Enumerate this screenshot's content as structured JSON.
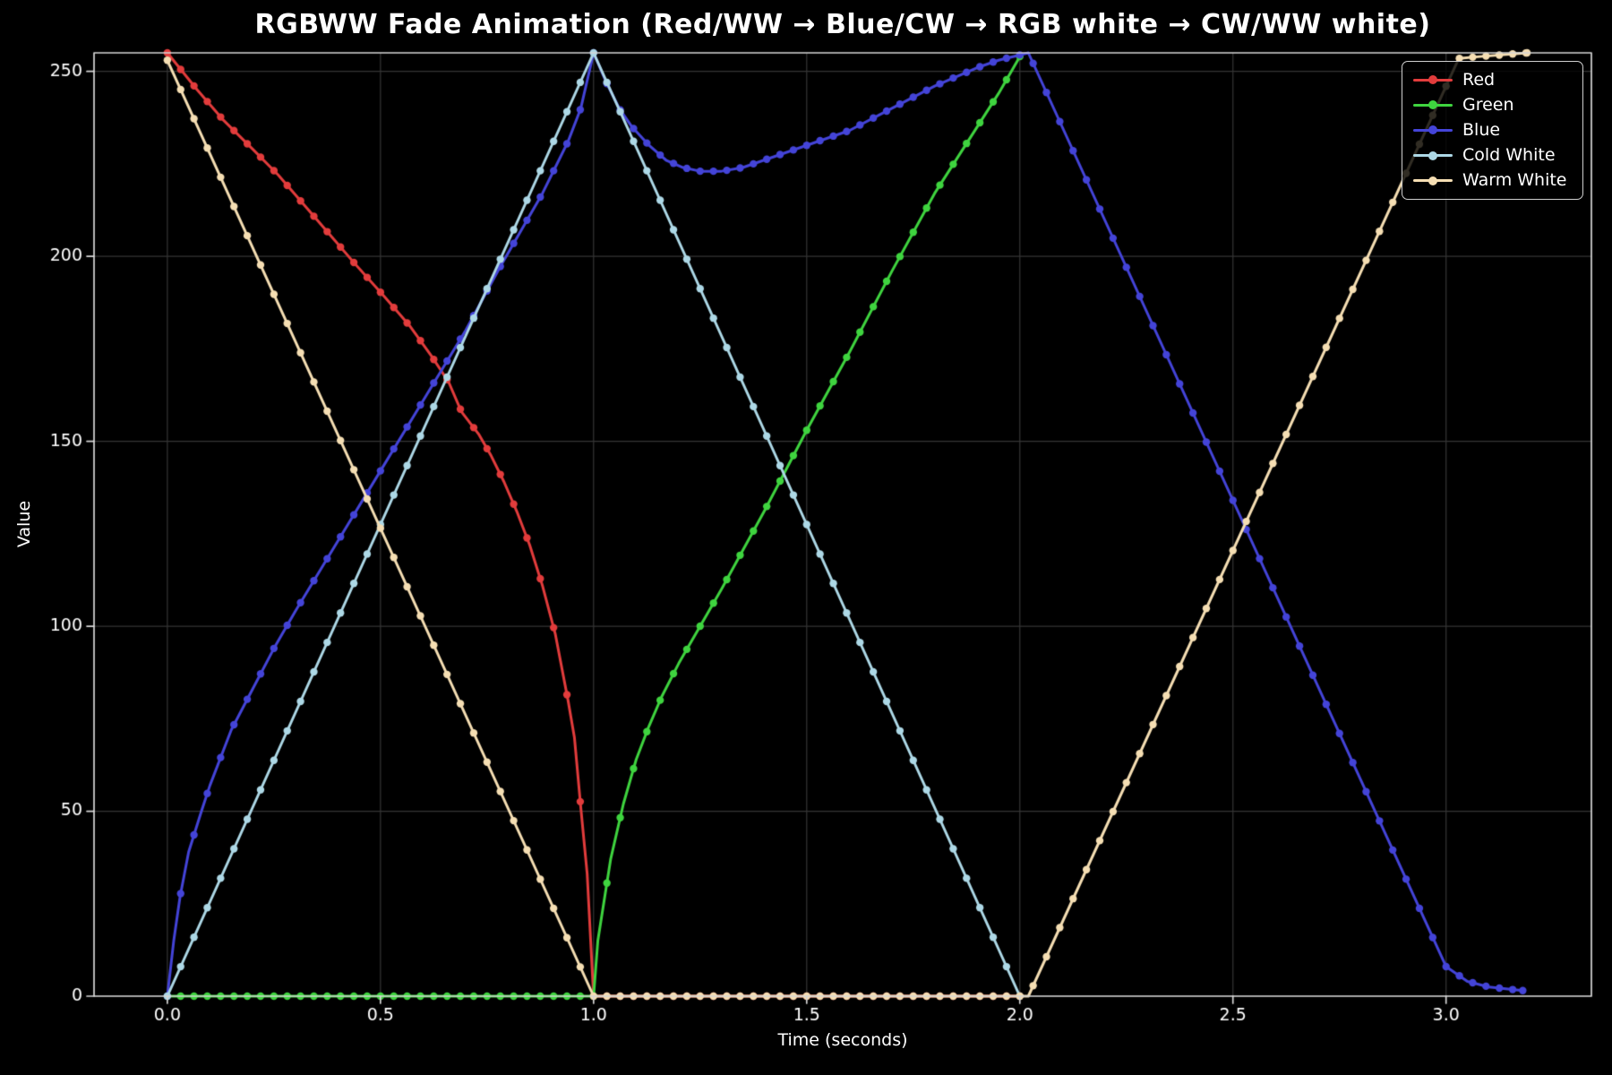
{
  "chart_data": {
    "type": "line",
    "title": "RGBWW Fade Animation (Red/WW → Blue/CW → RGB white → CW/WW white)",
    "xlabel": "Time (seconds)",
    "ylabel": "Value",
    "xlim": [
      -0.172,
      3.341
    ],
    "ylim": [
      0,
      255
    ],
    "xtick_values": [
      0.0,
      0.5,
      1.0,
      1.5,
      2.0,
      2.5,
      3.0
    ],
    "xtick_labels": [
      "0.0",
      "0.5",
      "1.0",
      "1.5",
      "2.0",
      "2.5",
      "3.0"
    ],
    "ytick_values": [
      0,
      50,
      100,
      150,
      200,
      250
    ],
    "ytick_labels": [
      "0",
      "50",
      "100",
      "150",
      "200",
      "250"
    ],
    "grid": true,
    "marker_interval": 0.03125,
    "legend": {
      "position": "upper-right"
    },
    "style": {
      "background": "#000000",
      "grid_color": "#353535",
      "spine_color": "#d6d6d6",
      "text_color": "#ffffff",
      "legend_bg": "rgba(0,0,0,0.8)",
      "legend_border": "#cfcfcf"
    },
    "series": [
      {
        "name": "Red",
        "color": "#e23c3c",
        "keypoints": [
          [
            0,
            255
          ],
          [
            0.07,
            245
          ],
          [
            0.13,
            237
          ],
          [
            0.2,
            229
          ],
          [
            0.26,
            222
          ],
          [
            0.32,
            214
          ],
          [
            0.38,
            206
          ],
          [
            0.44,
            198
          ],
          [
            0.51,
            189
          ],
          [
            0.57,
            181
          ],
          [
            0.62,
            173
          ],
          [
            0.66,
            166
          ],
          [
            0.69,
            158
          ],
          [
            0.73,
            152
          ],
          [
            0.76,
            146
          ],
          [
            0.79,
            139
          ],
          [
            0.82,
            131
          ],
          [
            0.85,
            122
          ],
          [
            0.88,
            111
          ],
          [
            0.91,
            98
          ],
          [
            0.94,
            80
          ],
          [
            0.955,
            70
          ],
          [
            0.97,
            51
          ],
          [
            0.985,
            33
          ],
          [
            1.0,
            0
          ],
          [
            2.0,
            0
          ]
        ]
      },
      {
        "name": "Green",
        "color": "#3fd43f",
        "keypoints": [
          [
            0,
            0
          ],
          [
            1.0,
            0
          ],
          [
            1.01,
            15
          ],
          [
            1.04,
            37
          ],
          [
            1.07,
            52
          ],
          [
            1.1,
            64
          ],
          [
            1.13,
            73
          ],
          [
            1.16,
            81
          ],
          [
            1.2,
            90
          ],
          [
            1.25,
            100
          ],
          [
            1.3,
            110
          ],
          [
            1.4,
            131
          ],
          [
            1.5,
            153
          ],
          [
            1.6,
            174
          ],
          [
            1.7,
            196
          ],
          [
            1.8,
            217
          ],
          [
            1.9,
            235
          ],
          [
            1.95,
            244
          ],
          [
            2.0,
            254
          ]
        ]
      },
      {
        "name": "Blue",
        "color": "#4444d8",
        "keypoints": [
          [
            0,
            0
          ],
          [
            0.015,
            15
          ],
          [
            0.03,
            27
          ],
          [
            0.05,
            39
          ],
          [
            0.08,
            50
          ],
          [
            0.1,
            57
          ],
          [
            0.15,
            72
          ],
          [
            0.2,
            83
          ],
          [
            0.25,
            94
          ],
          [
            0.3,
            104
          ],
          [
            0.4,
            123
          ],
          [
            0.5,
            142
          ],
          [
            0.6,
            161
          ],
          [
            0.7,
            180
          ],
          [
            0.78,
            197
          ],
          [
            0.85,
            211
          ],
          [
            0.88,
            217
          ],
          [
            0.91,
            224
          ],
          [
            0.94,
            231
          ],
          [
            0.97,
            240
          ],
          [
            1.0,
            255
          ],
          [
            1.03,
            247
          ],
          [
            1.06,
            240
          ],
          [
            1.09,
            235
          ],
          [
            1.13,
            230
          ],
          [
            1.17,
            226
          ],
          [
            1.21,
            224
          ],
          [
            1.25,
            223
          ],
          [
            1.3,
            223
          ],
          [
            1.35,
            224
          ],
          [
            1.4,
            226
          ],
          [
            1.5,
            230
          ],
          [
            1.6,
            234
          ],
          [
            1.7,
            240
          ],
          [
            1.8,
            246
          ],
          [
            1.9,
            251
          ],
          [
            1.95,
            253
          ],
          [
            2.02,
            255
          ],
          [
            3.0,
            8
          ],
          [
            3.05,
            4
          ],
          [
            3.1,
            2.5
          ],
          [
            3.18,
            1.5
          ]
        ]
      },
      {
        "name": "Cold White",
        "color": "#add8e6",
        "keypoints": [
          [
            0,
            0
          ],
          [
            1.0,
            255
          ],
          [
            2.0,
            0
          ]
        ]
      },
      {
        "name": "Warm White",
        "color": "#f5deb3",
        "keypoints": [
          [
            0,
            253
          ],
          [
            1.0,
            0
          ],
          [
            2.02,
            0
          ],
          [
            3.03,
            253.5
          ],
          [
            3.08,
            254
          ],
          [
            3.19,
            255
          ]
        ]
      }
    ]
  }
}
